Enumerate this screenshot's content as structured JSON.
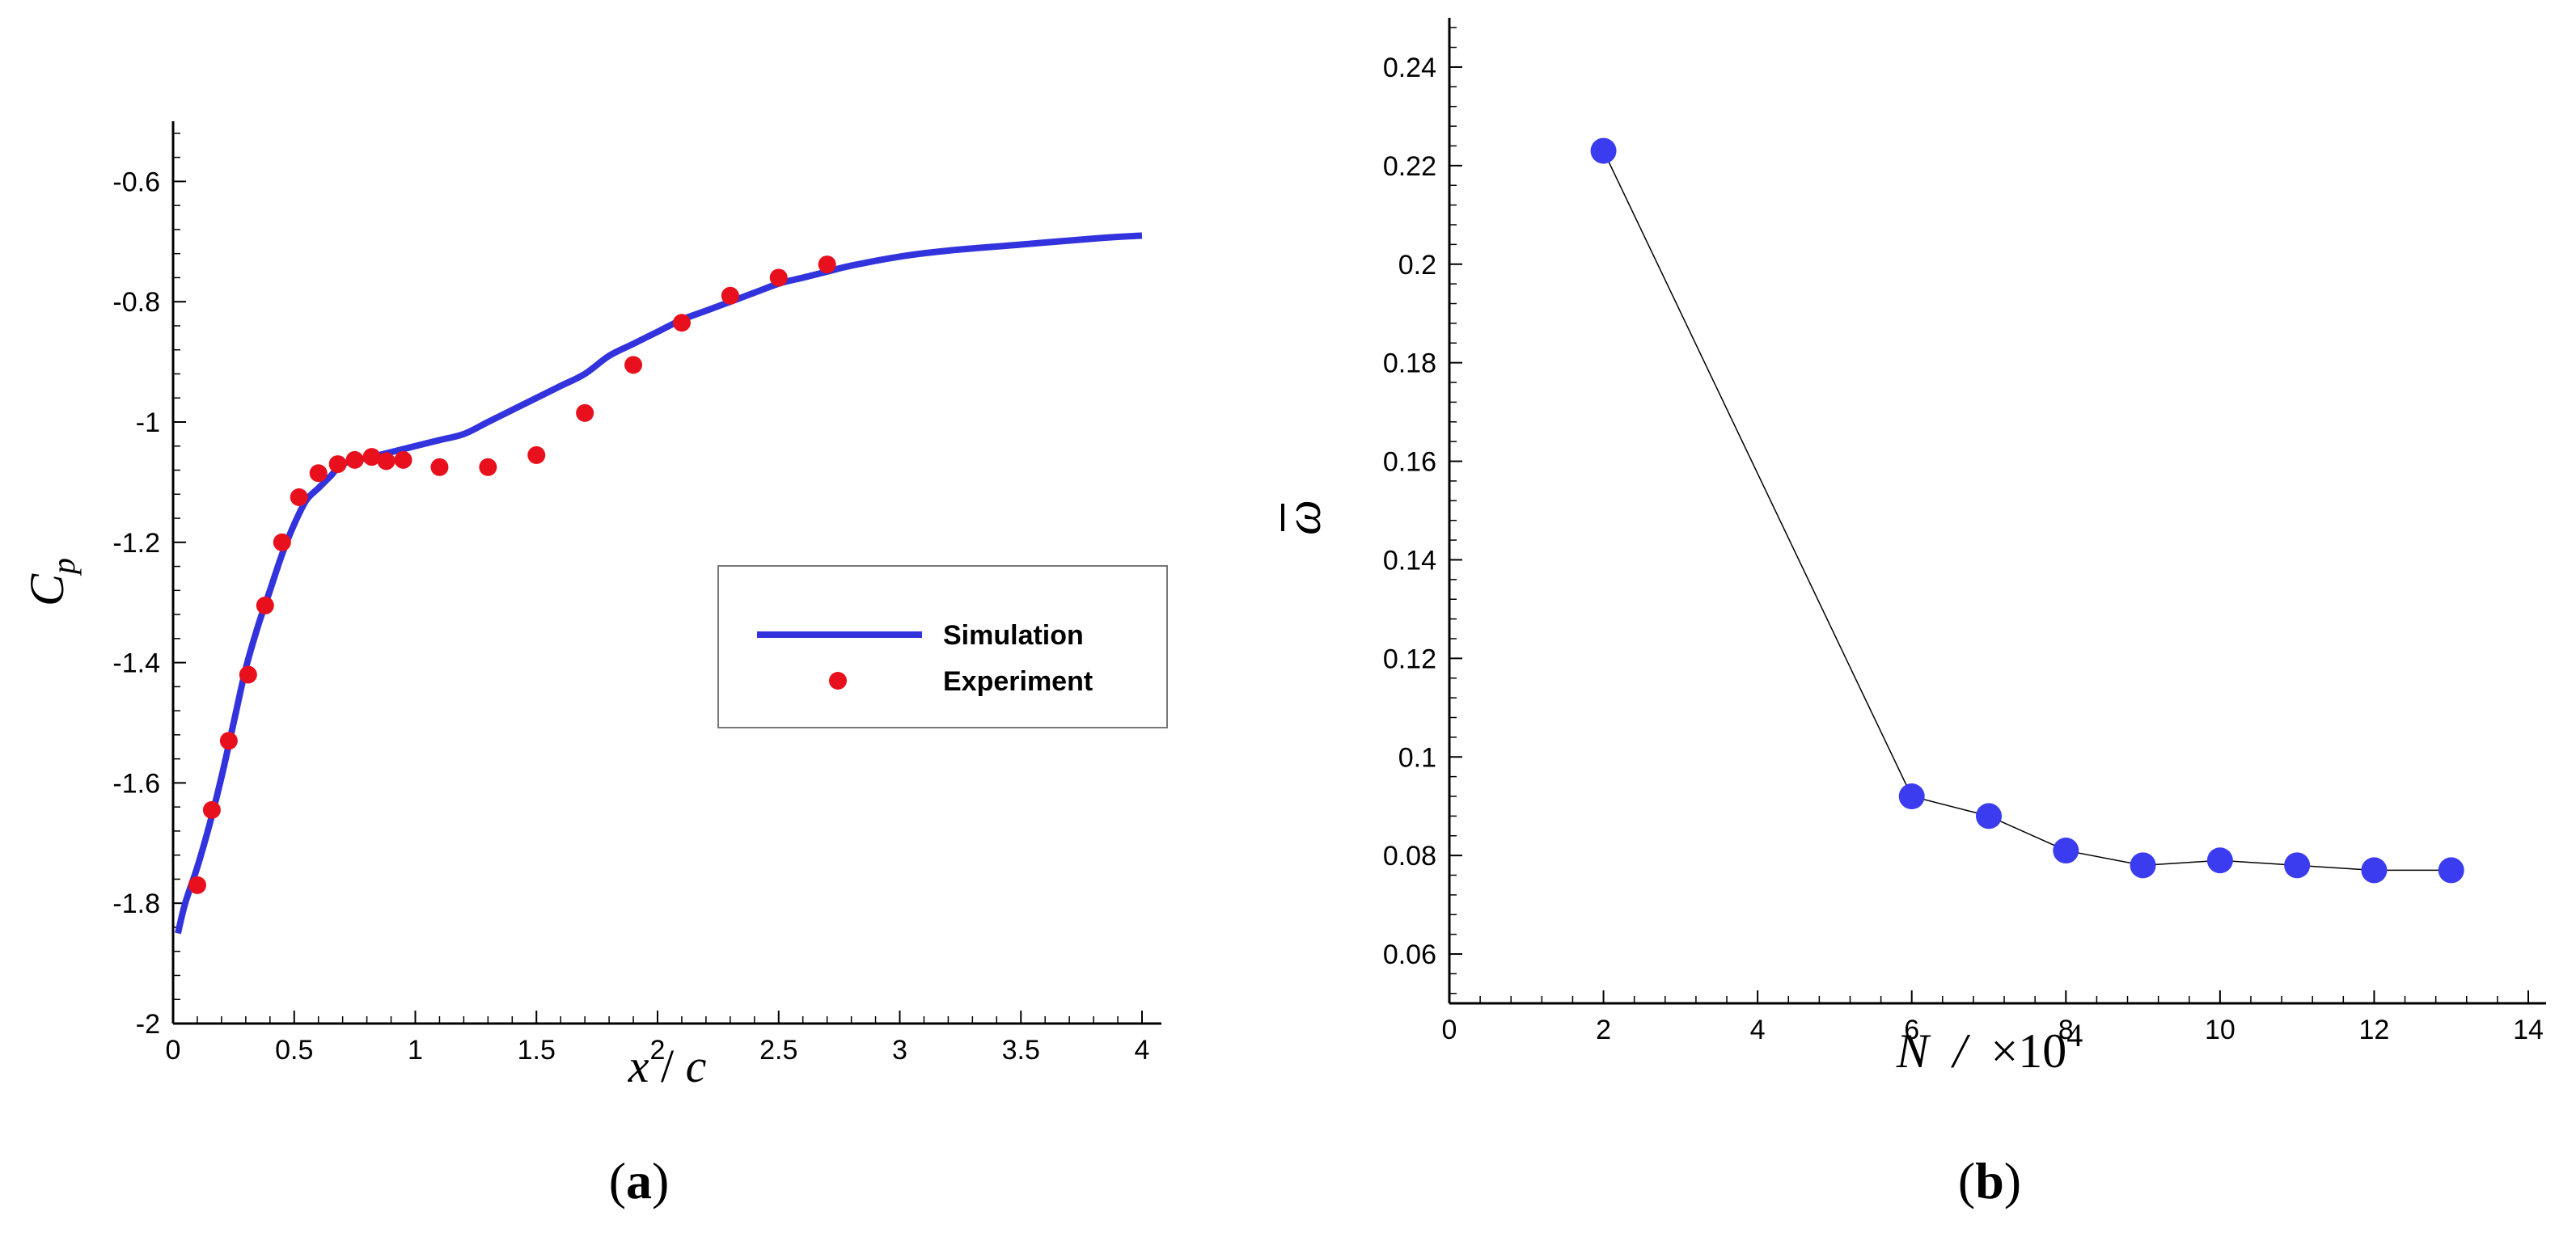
{
  "chart_data": [
    {
      "type": "line",
      "panel_label": {
        "open": "(",
        "letter": "a",
        "close": ")"
      },
      "xlabel": {
        "var": "x",
        "sep": " / ",
        "denom": "c"
      },
      "ylabel": {
        "base": "C",
        "sub": "p"
      },
      "xlim": [
        0,
        4
      ],
      "ylim": [
        -2,
        -0.5
      ],
      "xticks": [
        0,
        0.5,
        1,
        1.5,
        2,
        2.5,
        3,
        3.5,
        4
      ],
      "xtick_labels": [
        "0",
        "0.5",
        "1",
        "1.5",
        "2",
        "2.5",
        "3",
        "3.5",
        "4"
      ],
      "yticks": [
        -2,
        -1.8,
        -1.6,
        -1.4,
        -1.2,
        -1,
        -0.8,
        -0.6
      ],
      "ytick_labels": [
        "-2",
        "-1.8",
        "-1.6",
        "-1.4",
        "-1.2",
        "-1",
        "-0.8",
        "-0.6"
      ],
      "legend": {
        "position": "right",
        "entries": [
          "Simulation",
          "Experiment"
        ]
      },
      "series": [
        {
          "name": "Simulation",
          "style": "line",
          "color": "#3333dd",
          "x": [
            0.02,
            0.05,
            0.1,
            0.15,
            0.2,
            0.25,
            0.3,
            0.35,
            0.4,
            0.45,
            0.5,
            0.55,
            0.6,
            0.65,
            0.7,
            0.8,
            0.9,
            1.0,
            1.1,
            1.2,
            1.3,
            1.4,
            1.5,
            1.6,
            1.7,
            1.8,
            1.9,
            2.0,
            2.1,
            2.2,
            2.3,
            2.4,
            2.5,
            2.6,
            2.7,
            2.8,
            3.0,
            3.2,
            3.5,
            3.8,
            4.0
          ],
          "values": [
            -1.85,
            -1.8,
            -1.74,
            -1.67,
            -1.59,
            -1.5,
            -1.41,
            -1.34,
            -1.28,
            -1.22,
            -1.17,
            -1.13,
            -1.11,
            -1.09,
            -1.07,
            -1.06,
            -1.05,
            -1.04,
            -1.03,
            -1.02,
            -1.0,
            -0.98,
            -0.96,
            -0.94,
            -0.92,
            -0.89,
            -0.87,
            -0.85,
            -0.83,
            -0.815,
            -0.8,
            -0.785,
            -0.77,
            -0.76,
            -0.75,
            -0.74,
            -0.725,
            -0.715,
            -0.705,
            -0.695,
            -0.69
          ]
        },
        {
          "name": "Experiment",
          "style": "scatter",
          "color": "#e8101c",
          "x": [
            0.1,
            0.16,
            0.23,
            0.31,
            0.38,
            0.45,
            0.52,
            0.6,
            0.68,
            0.75,
            0.82,
            0.88,
            0.95,
            1.1,
            1.3,
            1.5,
            1.7,
            1.9,
            2.1,
            2.3,
            2.5,
            2.7
          ],
          "values": [
            -1.77,
            -1.645,
            -1.53,
            -1.42,
            -1.305,
            -1.2,
            -1.125,
            -1.085,
            -1.07,
            -1.063,
            -1.058,
            -1.065,
            -1.063,
            -1.075,
            -1.075,
            -1.055,
            -0.985,
            -0.905,
            -0.835,
            -0.79,
            -0.76,
            -0.738
          ]
        }
      ]
    },
    {
      "type": "line",
      "panel_label": {
        "open": "(",
        "letter": "b",
        "close": ")"
      },
      "xlabel": {
        "var": "N",
        "sep": "  /  ",
        "times": "×10",
        "exp": "4"
      },
      "ylabel": {
        "base": "ω",
        "bar": true
      },
      "xlim": [
        0,
        14
      ],
      "ylim": [
        0.05,
        0.25
      ],
      "xticks": [
        0,
        2,
        4,
        6,
        8,
        10,
        12,
        14
      ],
      "xtick_labels": [
        "0",
        "2",
        "4",
        "6",
        "8",
        "10",
        "12",
        "14"
      ],
      "yticks": [
        0.06,
        0.08,
        0.1,
        0.12,
        0.14,
        0.16,
        0.18,
        0.2,
        0.22,
        0.24
      ],
      "ytick_labels": [
        "0.06",
        "0.08",
        "0.1",
        "0.12",
        "0.14",
        "0.16",
        "0.18",
        "0.2",
        "0.22",
        "0.24"
      ],
      "series": [
        {
          "name": "omega_bar",
          "style": "line+markers",
          "color": "#3b3bf0",
          "x": [
            2,
            6,
            7,
            8,
            9,
            10,
            11,
            12,
            13
          ],
          "values": [
            0.223,
            0.092,
            0.088,
            0.081,
            0.078,
            0.079,
            0.078,
            0.077,
            0.077
          ]
        }
      ]
    }
  ]
}
